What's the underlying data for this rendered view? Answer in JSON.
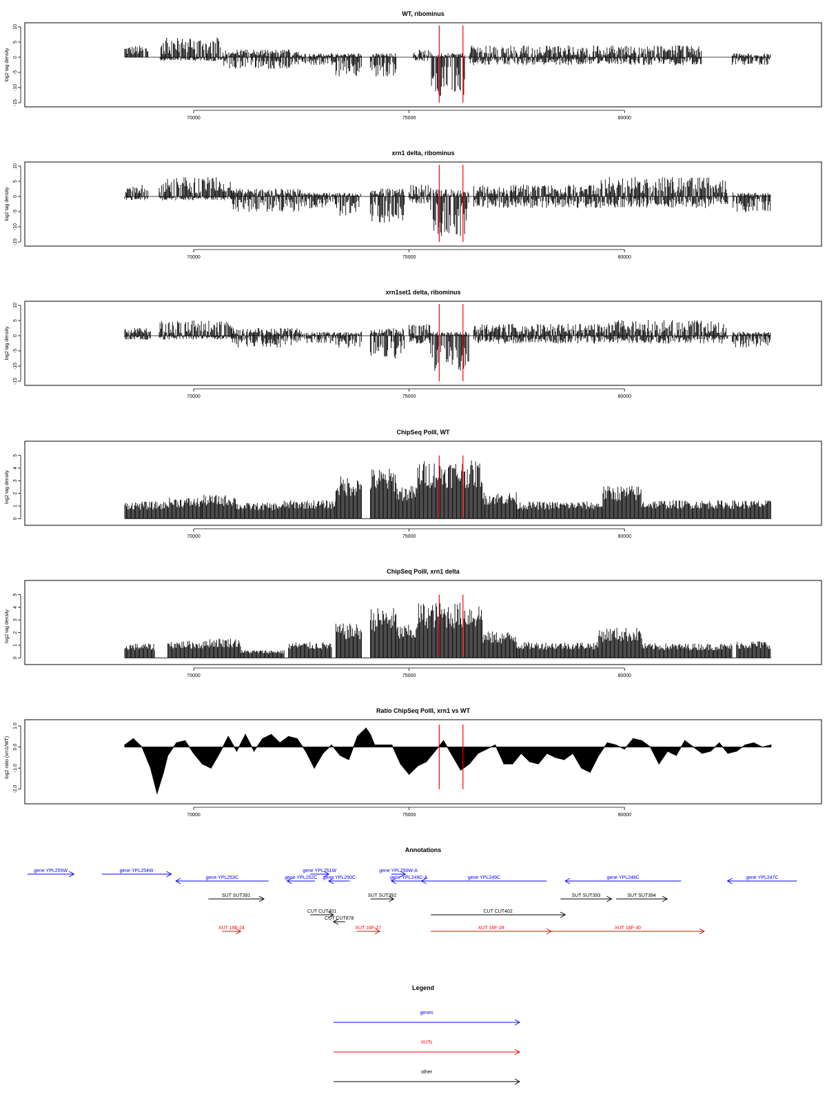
{
  "colors": {
    "gene": "#0000ff",
    "xut": "#ff0000",
    "other": "#000000",
    "marker": "#ff0000",
    "bar": "#000000"
  },
  "chart_data": [
    {
      "type": "bar",
      "title": "WT, ribominus",
      "ylabel": "log2 tag density",
      "xlim": [
        66800,
        83900
      ],
      "ylim": [
        -15,
        10
      ],
      "yticks": [
        10,
        5,
        0,
        -5,
        -10,
        -15
      ],
      "xticks": [
        70000,
        75000,
        80000
      ],
      "markers": [
        75700,
        76250
      ],
      "profile": [
        {
          "x": [
            68400,
            68950
          ],
          "pos": 3,
          "neg": 0
        },
        {
          "x": [
            69200,
            70700
          ],
          "pos": 5,
          "neg": -1
        },
        {
          "x": [
            70700,
            72500
          ],
          "pos": 2,
          "neg": -3
        },
        {
          "x": [
            72500,
            73300
          ],
          "pos": 1,
          "neg": -2
        },
        {
          "x": [
            73300,
            73900
          ],
          "pos": 1,
          "neg": -5
        },
        {
          "x": [
            74100,
            74700
          ],
          "pos": 1,
          "neg": -5
        },
        {
          "x": [
            75100,
            75500
          ],
          "pos": 2,
          "neg": -1
        },
        {
          "x": [
            75500,
            76300
          ],
          "pos": 1,
          "neg": -10
        },
        {
          "x": [
            76400,
            78500
          ],
          "pos": 3,
          "neg": -2
        },
        {
          "x": [
            78500,
            81800
          ],
          "pos": 3,
          "neg": -2
        },
        {
          "x": [
            82500,
            83400
          ],
          "pos": 1,
          "neg": -2
        }
      ]
    },
    {
      "type": "bar",
      "title": "xrn1 delta, ribominus",
      "ylabel": "log2 tag density",
      "xlim": [
        66800,
        83900
      ],
      "ylim": [
        -15,
        10
      ],
      "yticks": [
        10,
        5,
        0,
        -5,
        -10,
        -15
      ],
      "xticks": [
        70000,
        75000,
        80000
      ],
      "markers": [
        75700,
        76250
      ],
      "profile": [
        {
          "x": [
            68400,
            68950
          ],
          "pos": 3,
          "neg": -1
        },
        {
          "x": [
            69200,
            70900
          ],
          "pos": 5,
          "neg": -1
        },
        {
          "x": [
            70900,
            72500
          ],
          "pos": 2,
          "neg": -4
        },
        {
          "x": [
            72500,
            73300
          ],
          "pos": 1,
          "neg": -3
        },
        {
          "x": [
            73300,
            73900
          ],
          "pos": 1,
          "neg": -5
        },
        {
          "x": [
            74100,
            74900
          ],
          "pos": 2,
          "neg": -7
        },
        {
          "x": [
            75000,
            75500
          ],
          "pos": 3,
          "neg": -2
        },
        {
          "x": [
            75500,
            76400
          ],
          "pos": 2,
          "neg": -10
        },
        {
          "x": [
            76500,
            79400
          ],
          "pos": 3,
          "neg": -3
        },
        {
          "x": [
            79400,
            82400
          ],
          "pos": 5,
          "neg": -3
        },
        {
          "x": [
            82500,
            83400
          ],
          "pos": 1,
          "neg": -4
        }
      ]
    },
    {
      "type": "bar",
      "title": "xrn1set1 delta, ribominus",
      "ylabel": "log2 tag density",
      "xlim": [
        66800,
        83900
      ],
      "ylim": [
        -15,
        10
      ],
      "yticks": [
        10,
        5,
        0,
        -5,
        -10,
        -15
      ],
      "xticks": [
        70000,
        75000,
        80000
      ],
      "markers": [
        75700,
        76250
      ],
      "profile": [
        {
          "x": [
            68400,
            69000
          ],
          "pos": 2,
          "neg": -1
        },
        {
          "x": [
            69200,
            70900
          ],
          "pos": 4,
          "neg": -1
        },
        {
          "x": [
            70900,
            72500
          ],
          "pos": 2,
          "neg": -3
        },
        {
          "x": [
            72500,
            73300
          ],
          "pos": 1,
          "neg": -2
        },
        {
          "x": [
            73300,
            73900
          ],
          "pos": 1,
          "neg": -4
        },
        {
          "x": [
            74100,
            74900
          ],
          "pos": 2,
          "neg": -6
        },
        {
          "x": [
            75000,
            75500
          ],
          "pos": 3,
          "neg": -2
        },
        {
          "x": [
            75500,
            76400
          ],
          "pos": 1,
          "neg": -9
        },
        {
          "x": [
            76500,
            79400
          ],
          "pos": 3,
          "neg": -2
        },
        {
          "x": [
            79400,
            82400
          ],
          "pos": 4,
          "neg": -2
        },
        {
          "x": [
            82500,
            83400
          ],
          "pos": 1,
          "neg": -3
        }
      ]
    },
    {
      "type": "bar",
      "title": "ChipSeq PolII, WT",
      "ylabel": "log2 tag density",
      "xlim": [
        66800,
        83900
      ],
      "ylim": [
        -0.2,
        5.8
      ],
      "yticks": [
        0,
        1,
        2,
        3,
        4,
        5
      ],
      "xticks": [
        70000,
        75000,
        80000
      ],
      "markers": [
        75700,
        76250
      ],
      "profile": [
        {
          "x": [
            68400,
            69400
          ],
          "pos": 1.3,
          "neg": 0
        },
        {
          "x": [
            69400,
            70200
          ],
          "pos": 1.6,
          "neg": 0
        },
        {
          "x": [
            70200,
            71000
          ],
          "pos": 1.8,
          "neg": 0
        },
        {
          "x": [
            71000,
            72100
          ],
          "pos": 1.2,
          "neg": 0
        },
        {
          "x": [
            72100,
            73300
          ],
          "pos": 1.4,
          "neg": 0
        },
        {
          "x": [
            73300,
            73900
          ],
          "pos": 3.2,
          "neg": 0
        },
        {
          "x": [
            74100,
            74700
          ],
          "pos": 3.8,
          "neg": 0
        },
        {
          "x": [
            74700,
            75200
          ],
          "pos": 2.5,
          "neg": 0
        },
        {
          "x": [
            75200,
            76700
          ],
          "pos": 4.4,
          "neg": 0
        },
        {
          "x": [
            76700,
            77500
          ],
          "pos": 2.0,
          "neg": 0
        },
        {
          "x": [
            77500,
            79500
          ],
          "pos": 1.3,
          "neg": 0
        },
        {
          "x": [
            79500,
            80400
          ],
          "pos": 2.5,
          "neg": 0
        },
        {
          "x": [
            80400,
            83400
          ],
          "pos": 1.4,
          "neg": 0
        }
      ]
    },
    {
      "type": "bar",
      "title": "ChipSeq PolII, xrn1 delta",
      "ylabel": "log2 tag density",
      "xlim": [
        66800,
        83900
      ],
      "ylim": [
        -0.2,
        5.8
      ],
      "yticks": [
        0,
        1,
        2,
        3,
        4,
        5
      ],
      "xticks": [
        70000,
        75000,
        80000
      ],
      "markers": [
        75700,
        76250
      ],
      "profile": [
        {
          "x": [
            68400,
            69100
          ],
          "pos": 1.1,
          "neg": 0
        },
        {
          "x": [
            69400,
            70300
          ],
          "pos": 1.3,
          "neg": 0
        },
        {
          "x": [
            70300,
            71100
          ],
          "pos": 1.5,
          "neg": 0
        },
        {
          "x": [
            71100,
            72100
          ],
          "pos": 0.6,
          "neg": 0
        },
        {
          "x": [
            72200,
            73200
          ],
          "pos": 1.2,
          "neg": 0
        },
        {
          "x": [
            73300,
            73900
          ],
          "pos": 2.6,
          "neg": 0
        },
        {
          "x": [
            74100,
            74700
          ],
          "pos": 3.8,
          "neg": 0
        },
        {
          "x": [
            74700,
            75200
          ],
          "pos": 2.5,
          "neg": 0
        },
        {
          "x": [
            75200,
            76700
          ],
          "pos": 4.2,
          "neg": 0
        },
        {
          "x": [
            76700,
            77500
          ],
          "pos": 2.0,
          "neg": 0
        },
        {
          "x": [
            77500,
            79400
          ],
          "pos": 1.2,
          "neg": 0
        },
        {
          "x": [
            79400,
            80400
          ],
          "pos": 2.3,
          "neg": 0
        },
        {
          "x": [
            80400,
            82500
          ],
          "pos": 1.1,
          "neg": 0
        },
        {
          "x": [
            82600,
            83400
          ],
          "pos": 1.3,
          "neg": 0
        }
      ]
    },
    {
      "type": "area",
      "title": "Ratio ChipSeq PolII, xrn1 vs WT",
      "ylabel": "log2 ratio (xrn1/WT)",
      "xlim": [
        66800,
        83900
      ],
      "ylim": [
        -2.5,
        1.1
      ],
      "yticks": [
        1.0,
        0.0,
        -1.0,
        -2.0
      ],
      "xticks": [
        70000,
        75000,
        80000
      ],
      "markers": [
        75700,
        76250
      ],
      "x": [
        68400,
        68600,
        68800,
        69000,
        69150,
        69300,
        69400,
        69600,
        69800,
        70000,
        70200,
        70400,
        70600,
        70800,
        71000,
        71200,
        71400,
        71600,
        71800,
        72000,
        72200,
        72400,
        72600,
        72800,
        73000,
        73200,
        73400,
        73600,
        73800,
        74000,
        74100,
        74200,
        74400,
        74600,
        74800,
        75000,
        75200,
        75400,
        75600,
        75800,
        76000,
        76200,
        76400,
        76600,
        76800,
        77000,
        77200,
        77400,
        77600,
        77800,
        78000,
        78200,
        78400,
        78600,
        78800,
        79000,
        79200,
        79400,
        79600,
        79800,
        80000,
        80200,
        80400,
        80600,
        80800,
        81000,
        81200,
        81400,
        81600,
        81800,
        82000,
        82200,
        82400,
        82600,
        82800,
        83000,
        83200,
        83400
      ],
      "y": [
        0.1,
        0.4,
        0.0,
        -1.0,
        -2.2,
        -1.2,
        -0.4,
        0.2,
        0.3,
        -0.3,
        -0.8,
        -1.0,
        -0.3,
        0.5,
        -0.2,
        0.6,
        -0.2,
        0.4,
        0.6,
        0.2,
        0.5,
        0.4,
        -0.2,
        -1.0,
        -0.3,
        0.1,
        -0.4,
        -0.6,
        0.5,
        0.9,
        0.6,
        0.1,
        0.1,
        0.1,
        -0.8,
        -1.3,
        -0.9,
        -0.7,
        -0.2,
        0.3,
        -0.4,
        -1.1,
        -0.8,
        -0.3,
        -0.1,
        0.1,
        -0.8,
        -0.8,
        -0.3,
        -0.7,
        -0.8,
        -0.3,
        -0.5,
        -0.6,
        -0.3,
        -1.0,
        -1.2,
        -0.4,
        0.2,
        0.1,
        -0.1,
        0.4,
        0.3,
        0.0,
        -0.8,
        -0.2,
        -0.4,
        0.3,
        0.0,
        -0.3,
        -0.2,
        0.2,
        -0.3,
        -0.2,
        0.1,
        0.2,
        0.0,
        0.1
      ]
    }
  ],
  "annotations": {
    "title": "Annotations",
    "xlim": [
      66800,
      83900
    ],
    "items": [
      {
        "label": "gene YPL255W",
        "type": "gene",
        "start": 66800,
        "end": 67800,
        "dir": "+",
        "row": 0
      },
      {
        "label": "gene YPL254W",
        "type": "gene",
        "start": 68400,
        "end": 69900,
        "dir": "+",
        "row": 0
      },
      {
        "label": "gene YPL253C",
        "type": "gene",
        "start": 70000,
        "end": 72000,
        "dir": "-",
        "row": 1
      },
      {
        "label": "gene YPL251W",
        "type": "gene",
        "start": 72900,
        "end": 73300,
        "dir": "+",
        "row": 0
      },
      {
        "label": "gene YPL252C",
        "type": "gene",
        "start": 72400,
        "end": 73000,
        "dir": "-",
        "row": 1
      },
      {
        "label": "gene YPL250C",
        "type": "gene",
        "start": 73300,
        "end": 73750,
        "dir": "-",
        "row": 1
      },
      {
        "label": "gene YPL250W-A",
        "type": "gene",
        "start": 74650,
        "end": 74950,
        "dir": "+",
        "row": 0
      },
      {
        "label": "gene YPL249C-A",
        "type": "gene",
        "start": 74650,
        "end": 75400,
        "dir": "-",
        "row": 1
      },
      {
        "label": "gene YPL249C",
        "type": "gene",
        "start": 75300,
        "end": 78000,
        "dir": "-",
        "row": 1
      },
      {
        "label": "gene YPL248C",
        "type": "gene",
        "start": 78400,
        "end": 80900,
        "dir": "-",
        "row": 1
      },
      {
        "label": "gene YPL247C",
        "type": "gene",
        "start": 81900,
        "end": 83400,
        "dir": "-",
        "row": 1
      },
      {
        "label": "SUT SUT391",
        "type": "other",
        "start": 70700,
        "end": 71900,
        "dir": "+",
        "row": 2
      },
      {
        "label": "SUT SUT392",
        "type": "other",
        "start": 74200,
        "end": 74700,
        "dir": "+",
        "row": 2
      },
      {
        "label": "SUT SUT393",
        "type": "other",
        "start": 78300,
        "end": 79400,
        "dir": "+",
        "row": 2
      },
      {
        "label": "SUT SUT394",
        "type": "other",
        "start": 79500,
        "end": 80600,
        "dir": "+",
        "row": 2
      },
      {
        "label": "CUT CUT401",
        "type": "other",
        "start": 72900,
        "end": 73400,
        "dir": "+",
        "row": 3
      },
      {
        "label": "CUT CUT402",
        "type": "other",
        "start": 75500,
        "end": 78400,
        "dir": "+",
        "row": 3
      },
      {
        "label": "CUT CUT878",
        "type": "other",
        "start": 73400,
        "end": 73650,
        "dir": "-",
        "row": 4
      },
      {
        "label": "XUT 16F-24",
        "type": "xut",
        "start": 71000,
        "end": 71400,
        "dir": "+",
        "row": 5
      },
      {
        "label": "XUT 16F-27",
        "type": "xut",
        "start": 73900,
        "end": 74400,
        "dir": "+",
        "row": 5
      },
      {
        "label": "XUT 16F-28",
        "type": "xut",
        "start": 75500,
        "end": 78100,
        "dir": "+",
        "row": 5
      },
      {
        "label": "XUT 16F-30",
        "type": "xut",
        "start": 78100,
        "end": 81400,
        "dir": "+",
        "row": 5
      }
    ]
  },
  "legend": {
    "title": "Legend",
    "items": [
      {
        "label": "genes",
        "type": "gene"
      },
      {
        "label": "XUTs",
        "type": "xut"
      },
      {
        "label": "other",
        "type": "other"
      }
    ]
  }
}
